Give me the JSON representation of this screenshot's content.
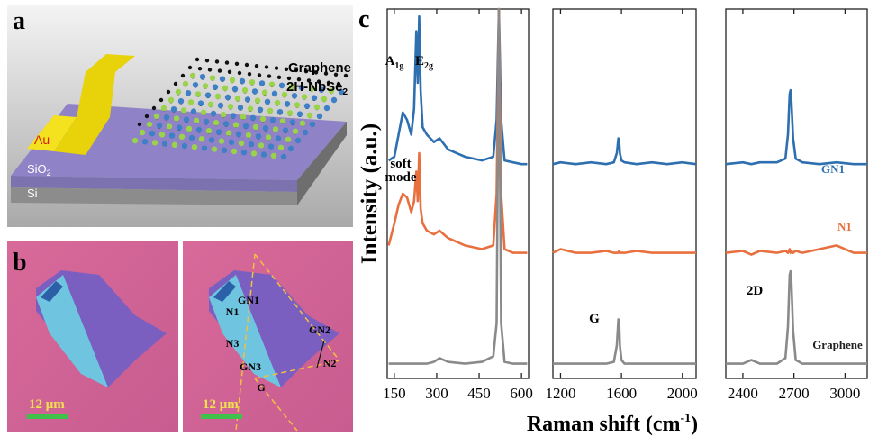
{
  "panels": {
    "a": "a",
    "b": "b",
    "c": "c"
  },
  "device": {
    "graphene": "Graphene",
    "nbse": {
      "text": "2H-NbSe",
      "sub": "2"
    },
    "au": "Au",
    "sio2": {
      "text": "SiO",
      "sub": "2"
    },
    "si": "Si"
  },
  "micrograph": {
    "scale_left": "12 μm",
    "scale_right": "12 μm",
    "regions": [
      "N1",
      "GN1",
      "N3",
      "GN3",
      "G",
      "GN2",
      "N2"
    ]
  },
  "figure": {
    "ylabel": "Intensity (a.u.)",
    "xlabel": {
      "text": "Raman shift (cm",
      "sup": "-1",
      "tail": ")"
    }
  },
  "chart_data": [
    {
      "type": "line",
      "x": [
        130,
        150,
        165,
        180,
        195,
        210,
        220,
        228,
        233,
        238,
        243,
        250,
        265,
        290,
        310,
        340,
        400,
        460,
        500,
        512,
        520,
        528,
        540,
        570,
        600,
        620
      ],
      "xlim": [
        125,
        625
      ],
      "xticks": [
        150,
        300,
        450,
        600
      ],
      "ylim": [
        0,
        10
      ],
      "annotations": [
        {
          "text": "A",
          "sub": "1g"
        },
        {
          "text": "E",
          "sub": "2g"
        },
        {
          "text": "soft"
        },
        {
          "text": "mode"
        }
      ],
      "series": [
        {
          "color": "#2e6fb0",
          "values": [
            5.9,
            6.0,
            6.6,
            7.2,
            7.0,
            6.6,
            7.3,
            9.4,
            8.0,
            9.8,
            7.8,
            6.8,
            6.6,
            6.4,
            6.5,
            6.2,
            6.0,
            5.9,
            6.0,
            7.0,
            10.0,
            7.0,
            5.9,
            5.85,
            5.8,
            5.8
          ]
        },
        {
          "color": "#e8703f",
          "values": [
            3.6,
            4.2,
            4.7,
            5.0,
            4.9,
            4.5,
            4.8,
            5.6,
            4.8,
            6.1,
            4.6,
            4.2,
            4.0,
            3.9,
            4.0,
            3.8,
            3.6,
            3.5,
            3.6,
            5.0,
            10.0,
            5.0,
            3.5,
            3.4,
            3.4,
            3.4
          ]
        },
        {
          "color": "#8a8a8a",
          "values": [
            0.4,
            0.4,
            0.4,
            0.4,
            0.4,
            0.4,
            0.4,
            0.4,
            0.4,
            0.4,
            0.4,
            0.4,
            0.4,
            0.45,
            0.55,
            0.45,
            0.4,
            0.45,
            0.6,
            1.5,
            10.0,
            1.5,
            0.45,
            0.4,
            0.4,
            0.4
          ]
        }
      ]
    },
    {
      "type": "line",
      "x": [
        1150,
        1200,
        1300,
        1400,
        1500,
        1550,
        1570,
        1580,
        1585,
        1590,
        1600,
        1620,
        1700,
        1800,
        1900,
        2000,
        2090
      ],
      "xlim": [
        1150,
        2090
      ],
      "xticks": [
        1200,
        1600,
        2000
      ],
      "ylim": [
        0,
        10
      ],
      "annotations": [
        {
          "text": "G"
        }
      ],
      "series": [
        {
          "color": "#2e6fb0",
          "values": [
            5.8,
            5.85,
            5.8,
            5.85,
            5.8,
            5.85,
            6.1,
            6.5,
            6.4,
            6.1,
            5.9,
            5.85,
            5.8,
            5.85,
            5.8,
            5.85,
            5.8
          ]
        },
        {
          "color": "#e8703f",
          "values": [
            3.4,
            3.5,
            3.4,
            3.4,
            3.45,
            3.4,
            3.4,
            3.4,
            3.45,
            3.4,
            3.4,
            3.4,
            3.45,
            3.4,
            3.4,
            3.4,
            3.4
          ]
        },
        {
          "color": "#8a8a8a",
          "values": [
            0.4,
            0.4,
            0.4,
            0.4,
            0.4,
            0.45,
            0.9,
            1.6,
            1.5,
            0.9,
            0.5,
            0.4,
            0.4,
            0.4,
            0.4,
            0.4,
            0.4
          ]
        }
      ]
    },
    {
      "type": "line",
      "x": [
        2300,
        2400,
        2450,
        2500,
        2600,
        2650,
        2665,
        2675,
        2680,
        2685,
        2695,
        2710,
        2750,
        2850,
        2950,
        3050,
        3130
      ],
      "xlim": [
        2300,
        3130
      ],
      "xticks": [
        2400,
        2700,
        3000
      ],
      "ylim": [
        0,
        10
      ],
      "annotations": [
        {
          "text": "2D"
        }
      ],
      "series": [
        {
          "name": "GN1",
          "color": "#2e6fb0",
          "values": [
            5.8,
            5.85,
            5.8,
            5.85,
            5.85,
            5.95,
            6.6,
            7.7,
            7.8,
            7.5,
            6.5,
            5.95,
            5.85,
            5.8,
            5.85,
            5.8,
            5.8
          ]
        },
        {
          "name": "N1",
          "color": "#e8703f",
          "values": [
            3.4,
            3.45,
            3.35,
            3.45,
            3.4,
            3.45,
            3.4,
            3.5,
            3.4,
            3.45,
            3.4,
            3.45,
            3.4,
            3.5,
            3.6,
            3.4,
            3.4
          ]
        },
        {
          "name": "Graphene",
          "color": "#8a8a8a",
          "values": [
            0.4,
            0.4,
            0.5,
            0.4,
            0.4,
            0.55,
            1.4,
            2.8,
            2.9,
            2.6,
            1.3,
            0.5,
            0.4,
            0.4,
            0.4,
            0.4,
            0.4
          ]
        }
      ]
    }
  ]
}
